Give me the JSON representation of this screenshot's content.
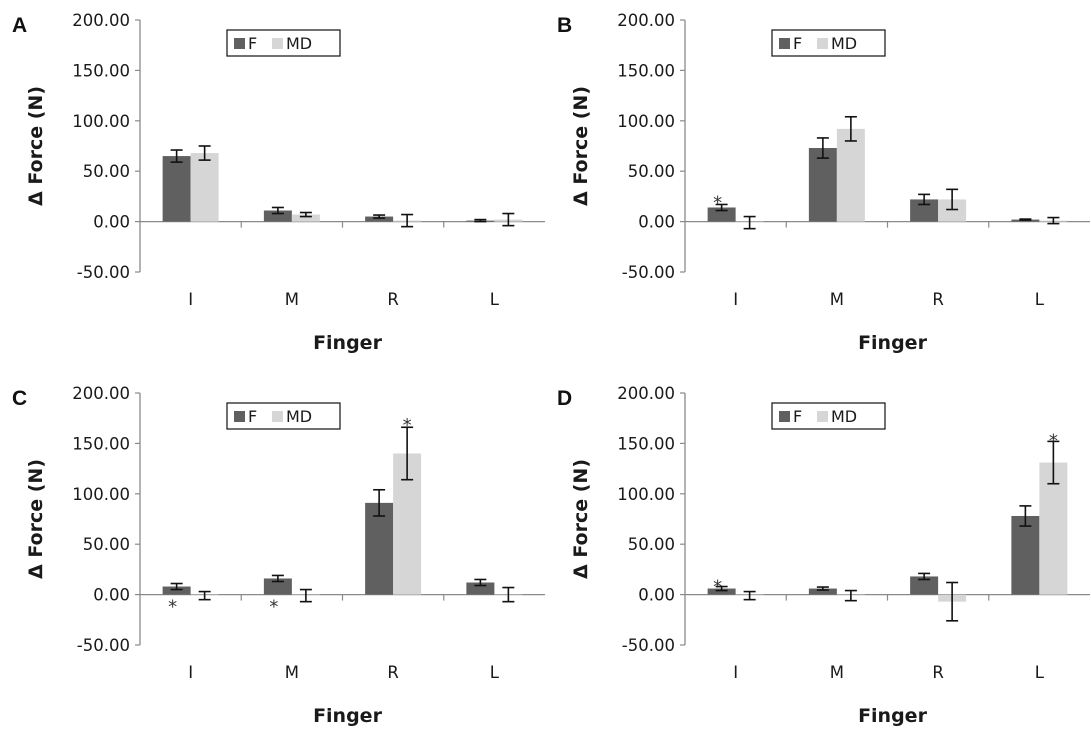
{
  "colors": {
    "F": "#606060",
    "MD": "#d6d6d6",
    "axis": "#8a8a8a",
    "errorbar": "#111111"
  },
  "chart_data": [
    {
      "panel": "A",
      "type": "bar",
      "categories": [
        "I",
        "M",
        "R",
        "L"
      ],
      "series": [
        {
          "name": "F",
          "values": [
            65,
            11,
            5,
            1
          ],
          "errors": [
            6,
            3,
            1.5,
            1
          ]
        },
        {
          "name": "MD",
          "values": [
            68,
            7,
            1,
            2
          ],
          "errors": [
            7,
            2,
            6,
            6
          ]
        }
      ],
      "ylabel": "Δ Force (N)",
      "xlabel": "Finger",
      "ylim": [
        -50,
        200
      ],
      "yticks": [
        "200.00",
        "150.00",
        "100.00",
        "50.00",
        "0.00",
        "-50.00"
      ],
      "legend": "top",
      "grid": false,
      "annotations": []
    },
    {
      "panel": "B",
      "type": "bar",
      "categories": [
        "I",
        "M",
        "R",
        "L"
      ],
      "series": [
        {
          "name": "F",
          "values": [
            14,
            73,
            22,
            2
          ],
          "errors": [
            3,
            10,
            5,
            0.5
          ]
        },
        {
          "name": "MD",
          "values": [
            -1,
            92,
            22,
            1
          ],
          "errors": [
            6,
            12,
            10,
            3
          ]
        }
      ],
      "ylabel": "Δ Force (N)",
      "xlabel": "Finger",
      "ylim": [
        -50,
        200
      ],
      "yticks": [
        "200.00",
        "150.00",
        "100.00",
        "50.00",
        "0.00",
        "-50.00"
      ],
      "legend": "top",
      "grid": false,
      "annotations": [
        {
          "text": "*",
          "category": "I",
          "series": "F",
          "y": 21
        }
      ]
    },
    {
      "panel": "C",
      "type": "bar",
      "categories": [
        "I",
        "M",
        "R",
        "L"
      ],
      "series": [
        {
          "name": "F",
          "values": [
            8,
            16,
            91,
            12
          ],
          "errors": [
            3,
            3,
            13,
            3
          ]
        },
        {
          "name": "MD",
          "values": [
            -1,
            -1,
            140,
            0
          ],
          "errors": [
            4,
            6,
            26,
            7
          ]
        }
      ],
      "ylabel": "Δ Force (N)",
      "xlabel": "Finger",
      "ylim": [
        -50,
        200
      ],
      "yticks": [
        "200.00",
        "150.00",
        "100.00",
        "50.00",
        "0.00",
        "-50.00"
      ],
      "legend": "top",
      "grid": false,
      "annotations": [
        {
          "text": "*",
          "category": "I",
          "series": "F",
          "y": -10
        },
        {
          "text": "*",
          "category": "M",
          "series": "F",
          "y": -10
        },
        {
          "text": "*",
          "category": "R",
          "series": "MD",
          "y": 170
        }
      ]
    },
    {
      "panel": "D",
      "type": "bar",
      "categories": [
        "I",
        "M",
        "R",
        "L"
      ],
      "series": [
        {
          "name": "F",
          "values": [
            6,
            6,
            18,
            78
          ],
          "errors": [
            2,
            1.5,
            3,
            10
          ]
        },
        {
          "name": "MD",
          "values": [
            -1,
            -1,
            -7,
            131
          ],
          "errors": [
            4,
            5,
            19,
            21
          ]
        }
      ],
      "ylabel": "Δ Force (N)",
      "xlabel": "Finger",
      "ylim": [
        -50,
        200
      ],
      "yticks": [
        "200.00",
        "150.00",
        "100.00",
        "50.00",
        "0.00",
        "-50.00"
      ],
      "legend": "top",
      "grid": false,
      "annotations": [
        {
          "text": "*",
          "category": "I",
          "series": "F",
          "y": 10
        },
        {
          "text": "*",
          "category": "L",
          "series": "MD",
          "y": 155
        }
      ]
    }
  ]
}
